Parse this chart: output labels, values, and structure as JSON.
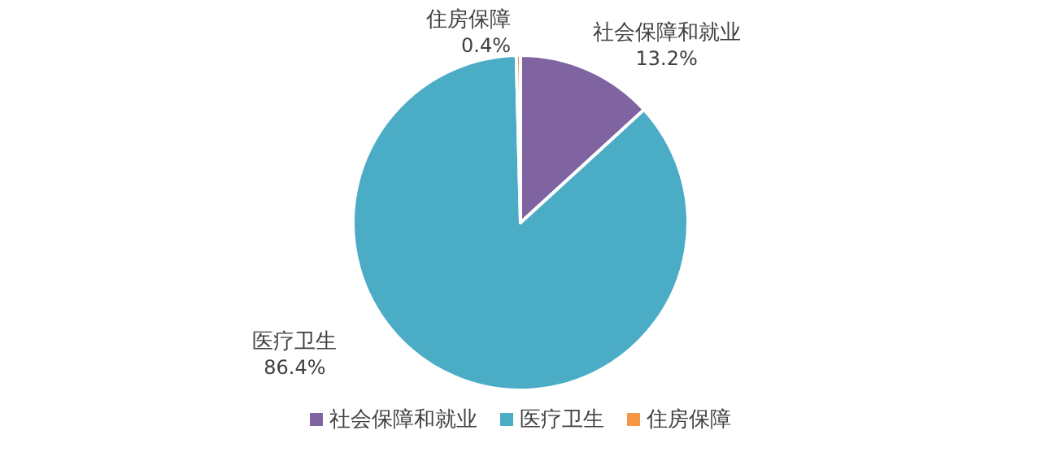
{
  "chart_data": {
    "type": "pie",
    "categories": [
      "社会保障和就业",
      "医疗卫生",
      "住房保障"
    ],
    "values": [
      13.2,
      86.4,
      0.4
    ],
    "colors": [
      "#8064a2",
      "#4bacc6",
      "#f79646"
    ],
    "value_labels": [
      "13.2%",
      "86.4%",
      "0.4%"
    ],
    "legend": "bottom"
  }
}
